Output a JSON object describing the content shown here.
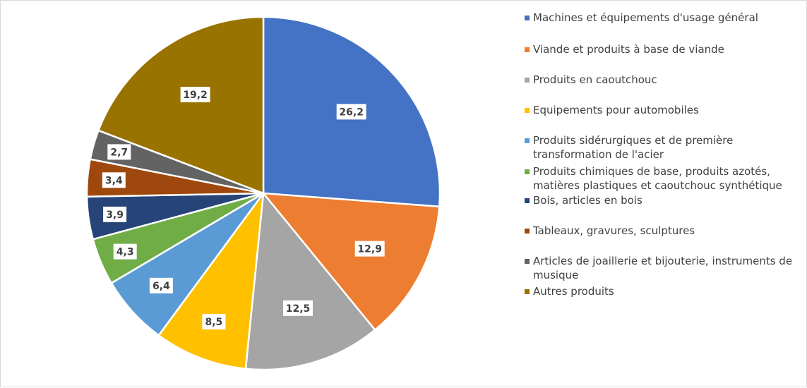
{
  "chart_data": {
    "type": "pie",
    "title": "",
    "legend_position": "right",
    "start_angle_deg": 0,
    "direction": "clockwise",
    "slices": [
      {
        "label": "Machines et équipements d'usage général",
        "value": 26.2,
        "display": "26,2",
        "color": "#4472C4"
      },
      {
        "label": "Viande et produits à base de viande",
        "value": 12.9,
        "display": "12,9",
        "color": "#ED7D31"
      },
      {
        "label": "Produits en caoutchouc",
        "value": 12.5,
        "display": "12,5",
        "color": "#A5A5A5"
      },
      {
        "label": "Equipements pour automobiles",
        "value": 8.5,
        "display": "8,5",
        "color": "#FFC000"
      },
      {
        "label": "Produits sidérurgiques et de première transformation de l'acier",
        "value": 6.4,
        "display": "6,4",
        "color": "#5B9BD5"
      },
      {
        "label": "Produits chimiques de base, produits azotés, matières plastiques et caoutchouc synthétique",
        "value": 4.3,
        "display": "4,3",
        "color": "#70AD47"
      },
      {
        "label": "Bois, articles en bois",
        "value": 3.9,
        "display": "3,9",
        "color": "#264478"
      },
      {
        "label": "Tableaux, gravures, sculptures",
        "value": 3.4,
        "display": "3,4",
        "color": "#9E480E"
      },
      {
        "label": "Articles de joaillerie et bijouterie, instruments de musique",
        "value": 2.7,
        "display": "2,7",
        "color": "#636363"
      },
      {
        "label": "Autres produits",
        "value": 19.2,
        "display": "19,2",
        "color": "#997300"
      }
    ]
  }
}
